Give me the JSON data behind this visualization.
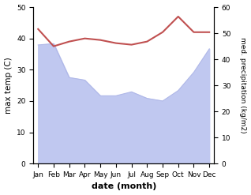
{
  "months": [
    "Jan",
    "Feb",
    "Mar",
    "Apr",
    "May",
    "Jun",
    "Jul",
    "Aug",
    "Sep",
    "Oct",
    "Nov",
    "Dec"
  ],
  "x": [
    0,
    1,
    2,
    3,
    4,
    5,
    6,
    7,
    8,
    9,
    10,
    11
  ],
  "temp": [
    43,
    37.5,
    39,
    40,
    39.5,
    38.5,
    38,
    39,
    42,
    47,
    42,
    42
  ],
  "precip": [
    45.5,
    46,
    33,
    32,
    26,
    26,
    27.5,
    25,
    24,
    28,
    35,
    44
  ],
  "temp_color": "#c05050",
  "precip_fill_color": "#c0c8f0",
  "precip_line_color": "#b0b8e8",
  "xlabel": "date (month)",
  "ylabel_left": "max temp (C)",
  "ylabel_right": "med. precipitation (kg/m2)",
  "ylim_left": [
    0,
    50
  ],
  "ylim_right": [
    0,
    60
  ],
  "yticks_left": [
    0,
    10,
    20,
    30,
    40,
    50
  ],
  "yticks_right": [
    0,
    10,
    20,
    30,
    40,
    50,
    60
  ]
}
